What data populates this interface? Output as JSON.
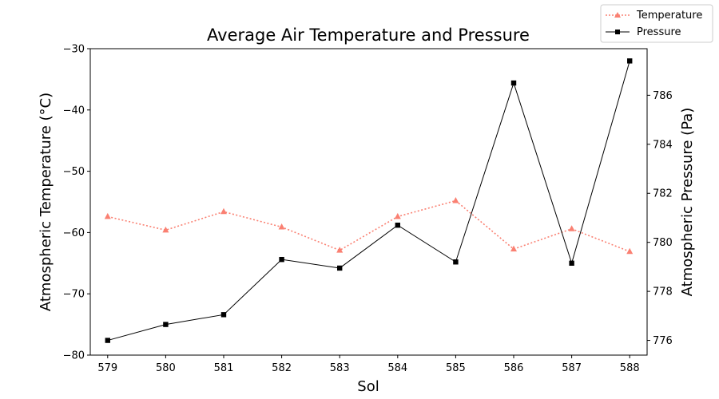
{
  "chart_data": {
    "type": "line",
    "title": "Average Air Temperature and Pressure",
    "xlabel": "Sol",
    "ylabel_left": "Atmospheric Temperature (°C)",
    "ylabel_right": "Atmospheric Pressure (Pa)",
    "x": [
      579,
      580,
      581,
      582,
      583,
      584,
      585,
      586,
      587,
      588
    ],
    "ylim_left": [
      -80,
      -30
    ],
    "yticks_left": [
      -80,
      -70,
      -60,
      -50,
      -40,
      -30
    ],
    "ylim_right": [
      775.4,
      787.9
    ],
    "yticks_right": [
      776,
      778,
      780,
      782,
      784,
      786
    ],
    "grid": false,
    "legend_position": "top-right",
    "series": [
      {
        "name": "Temperature",
        "axis": "left",
        "color": "#fa8072",
        "marker": "triangle",
        "linestyle": "dotted",
        "values": [
          -57.4,
          -59.6,
          -56.6,
          -59.1,
          -62.9,
          -57.4,
          -54.8,
          -62.7,
          -59.4,
          -63.1
        ]
      },
      {
        "name": "Pressure",
        "axis": "right",
        "color": "#000000",
        "marker": "square",
        "linestyle": "solid",
        "values": [
          776.0,
          776.65,
          777.05,
          779.3,
          778.95,
          780.7,
          779.2,
          786.5,
          779.15,
          787.4
        ]
      }
    ]
  }
}
